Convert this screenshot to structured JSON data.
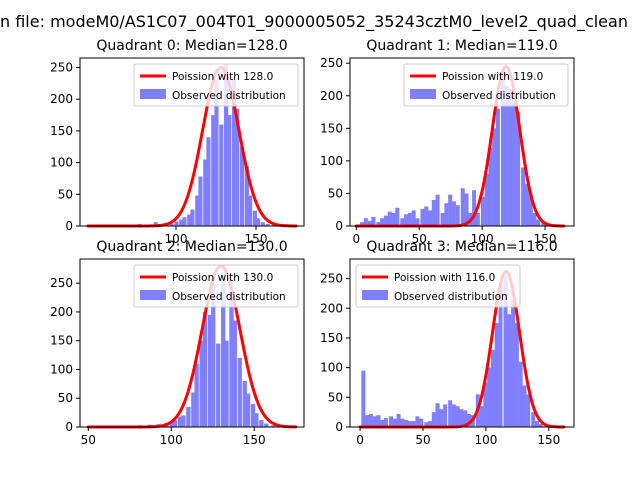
{
  "figure": {
    "suptitle": "n file: modeM0/AS1C07_004T01_9000005052_35243cztM0_level2_quad_clean"
  },
  "colors": {
    "fit_line": "#ff0000",
    "histogram": "#8080ff",
    "axes": "#000000"
  },
  "chart_data": [
    {
      "type": "bar",
      "title": "Quadrant 0: Median=128.0",
      "legend": {
        "placement": "top-right",
        "entries": [
          "Poission with 128.0",
          "Observed distribution"
        ]
      },
      "xlim": [
        40,
        180
      ],
      "ylim": [
        0,
        265
      ],
      "xticks": [
        100,
        150
      ],
      "yticks": [
        0,
        50,
        100,
        150,
        200,
        250
      ],
      "fit": {
        "label": "Poission with 128.0",
        "mean": 128.0,
        "peak": 250,
        "x_range": [
          45,
          175
        ]
      },
      "histogram": {
        "label": "Observed distribution",
        "bin_width": 2.6,
        "bins": [
          [
            45,
            2
          ],
          [
            56,
            2
          ],
          [
            76,
            3
          ],
          [
            86,
            6
          ],
          [
            91,
            2
          ],
          [
            96,
            4
          ],
          [
            99,
            7
          ],
          [
            102,
            10
          ],
          [
            104,
            14
          ],
          [
            107,
            18
          ],
          [
            109,
            26
          ],
          [
            112,
            48
          ],
          [
            114,
            78
          ],
          [
            117,
            105
          ],
          [
            119,
            140
          ],
          [
            122,
            175
          ],
          [
            124,
            230
          ],
          [
            127,
            160
          ],
          [
            130,
            255
          ],
          [
            132,
            175
          ],
          [
            135,
            230
          ],
          [
            137,
            185
          ],
          [
            140,
            125
          ],
          [
            143,
            95
          ],
          [
            145,
            48
          ],
          [
            148,
            24
          ],
          [
            150,
            12
          ],
          [
            153,
            6
          ],
          [
            156,
            3
          ],
          [
            160,
            2
          ]
        ]
      }
    },
    {
      "type": "bar",
      "title": "Quadrant 1: Median=119.0",
      "legend": {
        "placement": "top-right",
        "entries": [
          "Poission with 119.0",
          "Observed distribution"
        ]
      },
      "xlim": [
        -5,
        173
      ],
      "ylim": [
        0,
        258
      ],
      "xticks": [
        0,
        50,
        100,
        150
      ],
      "yticks": [
        0,
        50,
        100,
        150,
        200,
        250
      ],
      "fit": {
        "label": "Poission with 119.0",
        "mean": 119.0,
        "peak": 245,
        "x_range": [
          0,
          165
        ]
      },
      "histogram": {
        "label": "Observed distribution",
        "bin_width": 3.2,
        "bins": [
          [
            3,
            6
          ],
          [
            6,
            12
          ],
          [
            9,
            8
          ],
          [
            12,
            14
          ],
          [
            16,
            6
          ],
          [
            19,
            12
          ],
          [
            22,
            16
          ],
          [
            25,
            22
          ],
          [
            28,
            20
          ],
          [
            31,
            28
          ],
          [
            35,
            12
          ],
          [
            38,
            18
          ],
          [
            41,
            20
          ],
          [
            44,
            24
          ],
          [
            47,
            12
          ],
          [
            51,
            26
          ],
          [
            54,
            30
          ],
          [
            57,
            24
          ],
          [
            60,
            40
          ],
          [
            63,
            48
          ],
          [
            67,
            20
          ],
          [
            70,
            35
          ],
          [
            73,
            48
          ],
          [
            76,
            38
          ],
          [
            79,
            32
          ],
          [
            83,
            58
          ],
          [
            86,
            50
          ],
          [
            89,
            20
          ],
          [
            92,
            55
          ],
          [
            95,
            20
          ],
          [
            99,
            45
          ],
          [
            102,
            80
          ],
          [
            105,
            120
          ],
          [
            108,
            150
          ],
          [
            111,
            180
          ],
          [
            115,
            240
          ],
          [
            118,
            215
          ],
          [
            121,
            210
          ],
          [
            124,
            200
          ],
          [
            127,
            175
          ],
          [
            131,
            90
          ],
          [
            134,
            65
          ],
          [
            137,
            50
          ],
          [
            140,
            20
          ],
          [
            143,
            10
          ],
          [
            147,
            6
          ]
        ]
      }
    },
    {
      "type": "bar",
      "title": "Quadrant 2: Median=130.0",
      "legend": {
        "placement": "top-right",
        "entries": [
          "Poission with 130.0",
          "Observed distribution"
        ]
      },
      "xlim": [
        45,
        180
      ],
      "ylim": [
        0,
        292
      ],
      "xticks": [
        50,
        100,
        150
      ],
      "yticks": [
        0,
        50,
        100,
        150,
        200,
        250
      ],
      "fit": {
        "label": "Poission with 130.0",
        "mean": 130.0,
        "peak": 280,
        "x_range": [
          50,
          175
        ]
      },
      "histogram": {
        "label": "Observed distribution",
        "bin_width": 2.6,
        "bins": [
          [
            51,
            2
          ],
          [
            73,
            2
          ],
          [
            80,
            3
          ],
          [
            86,
            4
          ],
          [
            91,
            5
          ],
          [
            96,
            7
          ],
          [
            99,
            9
          ],
          [
            101,
            12
          ],
          [
            104,
            18
          ],
          [
            106,
            20
          ],
          [
            109,
            35
          ],
          [
            112,
            60
          ],
          [
            114,
            110
          ],
          [
            117,
            150
          ],
          [
            119,
            200
          ],
          [
            122,
            195
          ],
          [
            124,
            250
          ],
          [
            127,
            145
          ],
          [
            130,
            265
          ],
          [
            132,
            150
          ],
          [
            135,
            235
          ],
          [
            137,
            185
          ],
          [
            140,
            120
          ],
          [
            143,
            80
          ],
          [
            145,
            58
          ],
          [
            148,
            40
          ],
          [
            150,
            24
          ],
          [
            153,
            12
          ],
          [
            156,
            6
          ],
          [
            160,
            3
          ]
        ]
      }
    },
    {
      "type": "bar",
      "title": "Quadrant 3: Median=116.0",
      "legend": {
        "placement": "top-left",
        "entries": [
          "Poission with 116.0",
          "Observed distribution"
        ]
      },
      "xlim": [
        -8,
        170
      ],
      "ylim": [
        0,
        283
      ],
      "xticks": [
        0,
        50,
        100,
        150
      ],
      "yticks": [
        0,
        50,
        100,
        150,
        200,
        250
      ],
      "fit": {
        "label": "Poission with 116.0",
        "mean": 116.0,
        "peak": 262,
        "x_range": [
          0,
          162
        ]
      },
      "histogram": {
        "label": "Observed distribution",
        "bin_width": 3.2,
        "bins": [
          [
            1,
            95
          ],
          [
            4,
            20
          ],
          [
            7,
            22
          ],
          [
            10,
            18
          ],
          [
            13,
            20
          ],
          [
            16,
            12
          ],
          [
            19,
            15
          ],
          [
            23,
            18
          ],
          [
            26,
            14
          ],
          [
            29,
            22
          ],
          [
            32,
            14
          ],
          [
            35,
            12
          ],
          [
            38,
            10
          ],
          [
            41,
            10
          ],
          [
            44,
            18
          ],
          [
            47,
            14
          ],
          [
            51,
            8
          ],
          [
            54,
            10
          ],
          [
            57,
            25
          ],
          [
            60,
            40
          ],
          [
            63,
            30
          ],
          [
            66,
            38
          ],
          [
            70,
            45
          ],
          [
            73,
            38
          ],
          [
            76,
            35
          ],
          [
            79,
            30
          ],
          [
            82,
            28
          ],
          [
            85,
            22
          ],
          [
            88,
            20
          ],
          [
            92,
            55
          ],
          [
            95,
            35
          ],
          [
            98,
            75
          ],
          [
            101,
            100
          ],
          [
            104,
            130
          ],
          [
            107,
            175
          ],
          [
            110,
            240
          ],
          [
            114,
            255
          ],
          [
            117,
            190
          ],
          [
            120,
            215
          ],
          [
            123,
            175
          ],
          [
            126,
            110
          ],
          [
            129,
            70
          ],
          [
            132,
            55
          ],
          [
            136,
            25
          ],
          [
            139,
            10
          ],
          [
            142,
            5
          ]
        ]
      }
    }
  ]
}
